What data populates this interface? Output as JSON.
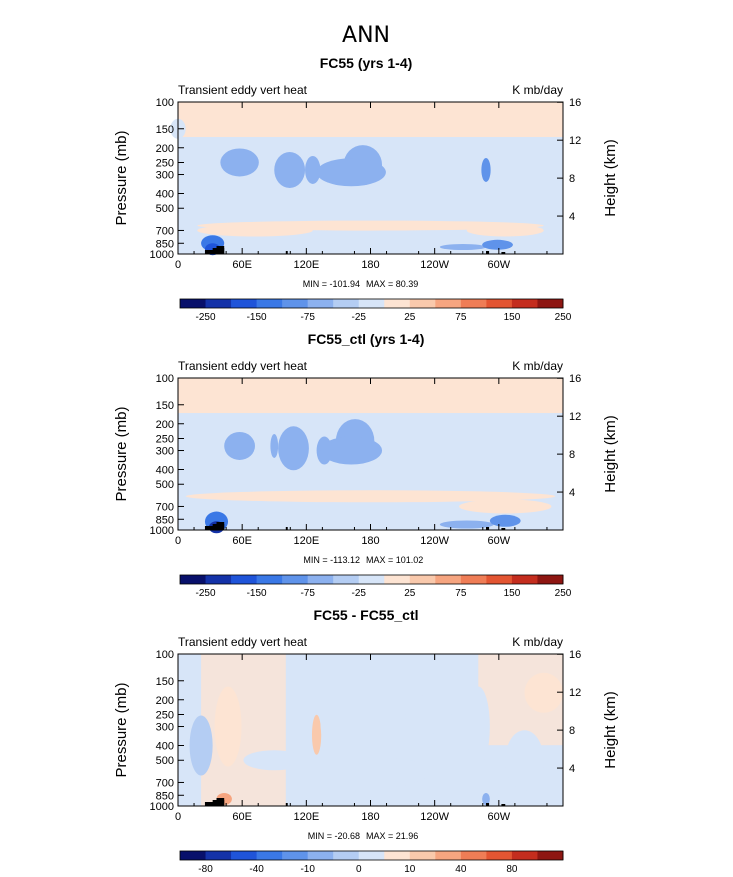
{
  "main_title": "ANN",
  "colors": {
    "cb_levels": [
      "#08106b",
      "#1432a8",
      "#1f54d9",
      "#3a78e6",
      "#5f93ea",
      "#8cb1ef",
      "#b4cdf3",
      "#d7e5f8",
      "#fde4d3",
      "#f9c9ac",
      "#f6a580",
      "#ef7d56",
      "#e35532",
      "#c42d1e",
      "#8e1612"
    ],
    "bg_positive": "#fde4d3",
    "bg_neutral": "#d7e5f8"
  },
  "chart_data": [
    {
      "type": "heatmap",
      "title": "FC55 (yrs 1-4)",
      "left_label": "Transient eddy vert heat",
      "right_label": "K mb/day",
      "ylabel": "Pressure (mb)",
      "ylabel_right": "Height (km)",
      "x_ticks": [
        "0",
        "60E",
        "120E",
        "180",
        "120W",
        "60W"
      ],
      "xlim": [
        0,
        360
      ],
      "y_ticks": [
        "100",
        "150",
        "200",
        "250",
        "300",
        "400",
        "500",
        "700",
        "850",
        "1000"
      ],
      "ylim": [
        1000,
        100
      ],
      "height_ticks": [
        "4",
        "8",
        "12",
        "16"
      ],
      "min_label": "MIN = -101.94",
      "max_label": "MAX =  80.39",
      "colorbar_labels": [
        "-250",
        "-150",
        "-75",
        "-25",
        "25",
        "75",
        "150",
        "250"
      ]
    },
    {
      "type": "heatmap",
      "title": "FC55_ctl (yrs 1-4)",
      "left_label": "Transient eddy vert heat",
      "right_label": "K mb/day",
      "ylabel": "Pressure (mb)",
      "ylabel_right": "Height (km)",
      "x_ticks": [
        "0",
        "60E",
        "120E",
        "180",
        "120W",
        "60W"
      ],
      "xlim": [
        0,
        360
      ],
      "y_ticks": [
        "100",
        "150",
        "200",
        "250",
        "300",
        "400",
        "500",
        "700",
        "850",
        "1000"
      ],
      "ylim": [
        1000,
        100
      ],
      "height_ticks": [
        "4",
        "8",
        "12",
        "16"
      ],
      "min_label": "MIN = -113.12",
      "max_label": "MAX = 101.02",
      "colorbar_labels": [
        "-250",
        "-150",
        "-75",
        "-25",
        "25",
        "75",
        "150",
        "250"
      ]
    },
    {
      "type": "heatmap",
      "title": "FC55 - FC55_ctl",
      "left_label": "Transient eddy vert heat",
      "right_label": "K mb/day",
      "ylabel": "Pressure (mb)",
      "ylabel_right": "Height (km)",
      "x_ticks": [
        "0",
        "60E",
        "120E",
        "180",
        "120W",
        "60W"
      ],
      "xlim": [
        0,
        360
      ],
      "y_ticks": [
        "100",
        "150",
        "200",
        "250",
        "300",
        "400",
        "500",
        "700",
        "850",
        "1000"
      ],
      "ylim": [
        1000,
        100
      ],
      "height_ticks": [
        "4",
        "8",
        "12",
        "16"
      ],
      "min_label": "MIN = -20.68",
      "max_label": "MAX =  21.96",
      "colorbar_labels": [
        "-80",
        "-40",
        "-10",
        "0",
        "10",
        "40",
        "80"
      ]
    }
  ]
}
